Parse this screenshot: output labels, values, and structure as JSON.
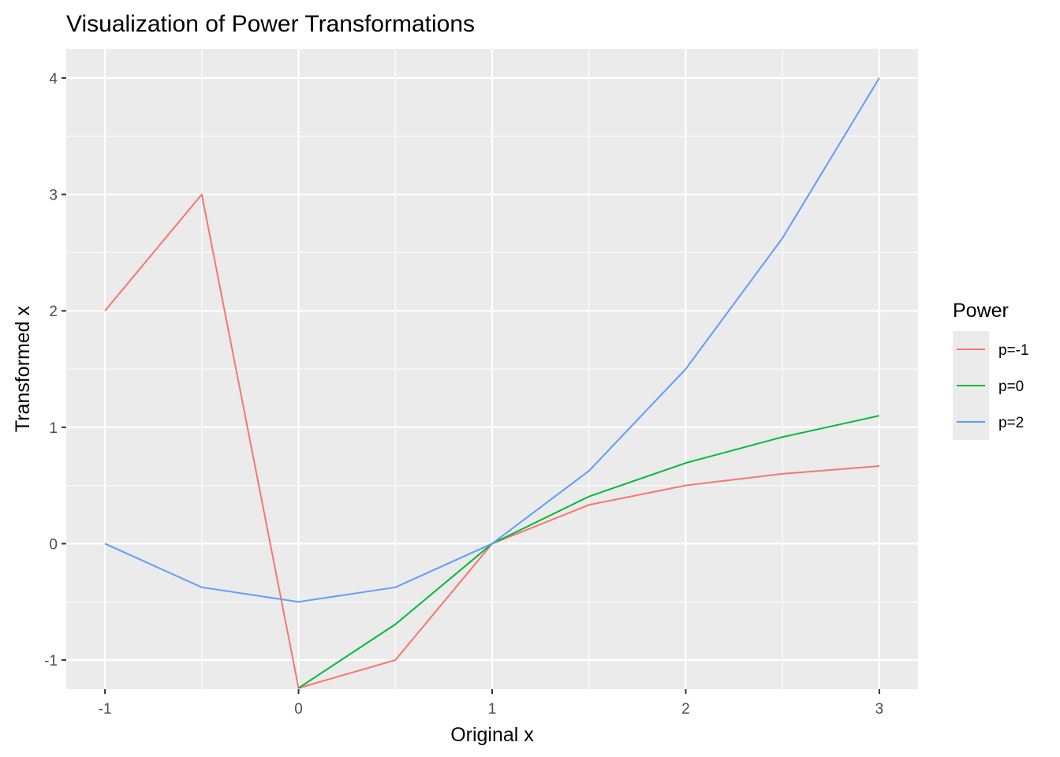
{
  "chart_data": {
    "type": "line",
    "title": "Visualization of Power Transformations",
    "xlabel": "Original x",
    "ylabel": "Transformed x",
    "x": [
      -1,
      -0.5,
      0,
      0.5,
      1,
      1.5,
      2,
      2.5,
      3
    ],
    "x_ticks": [
      -1,
      0,
      1,
      2,
      3
    ],
    "x_tick_labels": [
      "-1",
      "0",
      "1",
      "2",
      "3"
    ],
    "y_ticks": [
      -1,
      0,
      1,
      2,
      3,
      4
    ],
    "y_tick_labels": [
      "-1",
      "0",
      "1",
      "2",
      "3",
      "4"
    ],
    "xlim": [
      -1.2,
      3.2
    ],
    "ylim": [
      -1.25,
      4.25
    ],
    "grid": true,
    "panel_background": "#ebebeb",
    "legend": {
      "title": "Power",
      "position": "right"
    },
    "series": [
      {
        "name": "p=-1",
        "color": "#f8766d",
        "values": [
          2,
          3,
          -1.24,
          -1,
          0,
          0.333,
          0.5,
          0.6,
          0.667
        ]
      },
      {
        "name": "p=0",
        "color": "#00ba38",
        "values": [
          null,
          null,
          -1.24,
          -0.693,
          0,
          0.405,
          0.693,
          0.916,
          1.099
        ]
      },
      {
        "name": "p=2",
        "color": "#619cff",
        "values": [
          0,
          -0.375,
          -0.5,
          -0.375,
          0,
          0.625,
          1.5,
          2.625,
          4
        ]
      }
    ]
  }
}
